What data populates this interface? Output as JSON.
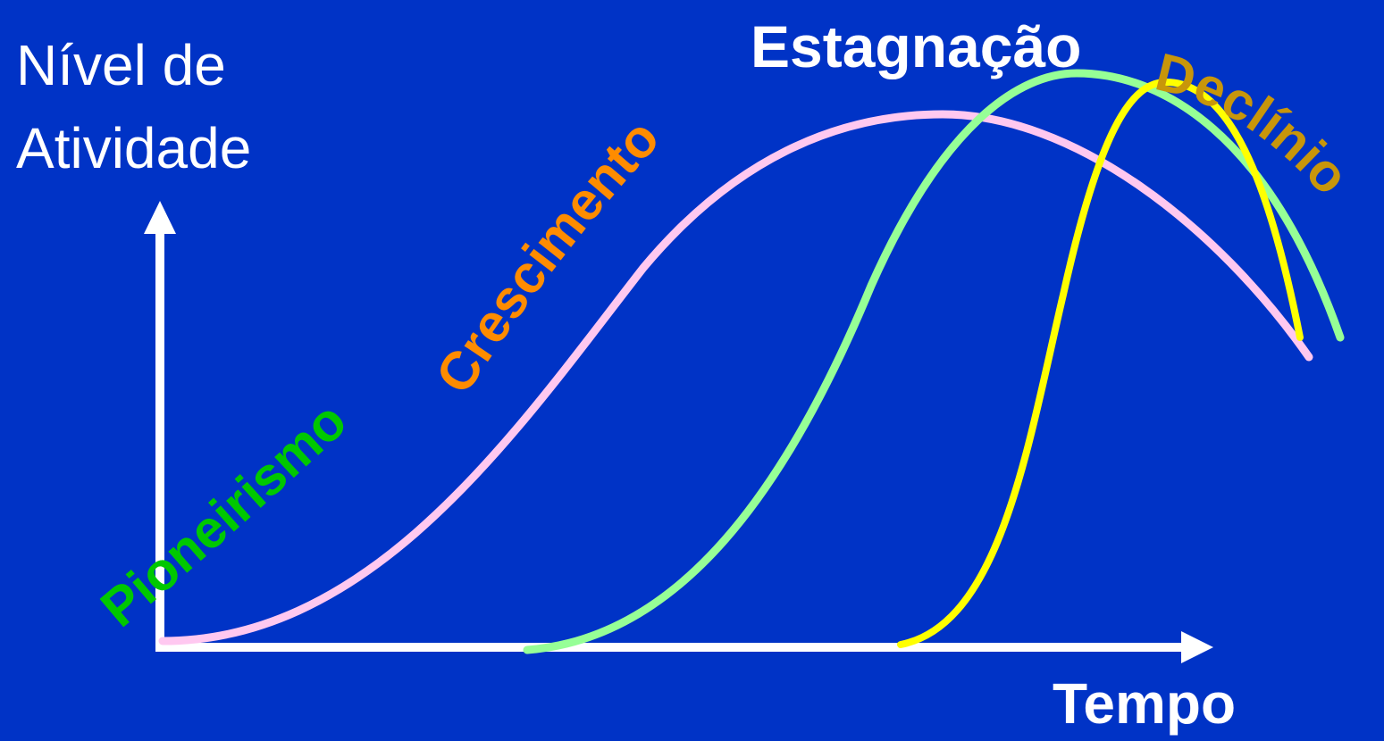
{
  "axes": {
    "y_label_line1": "Nível de",
    "y_label_line2": "Atividade",
    "x_label": "Tempo"
  },
  "stages": [
    {
      "label": "Pioneirismo",
      "color": "#00c800"
    },
    {
      "label": "Crescimento",
      "color": "#ff8c00"
    },
    {
      "label": "Estagnação",
      "color": "#ffffff"
    },
    {
      "label": "Declínio",
      "color": "#c8960a"
    }
  ],
  "curves": [
    {
      "id": "curve-pink",
      "color": "#ffc8f0"
    },
    {
      "id": "curve-green",
      "color": "#96ff96"
    },
    {
      "id": "curve-yellow",
      "color": "#ffff00"
    }
  ],
  "colors": {
    "background": "#0033c6",
    "axis": "#ffffff"
  }
}
